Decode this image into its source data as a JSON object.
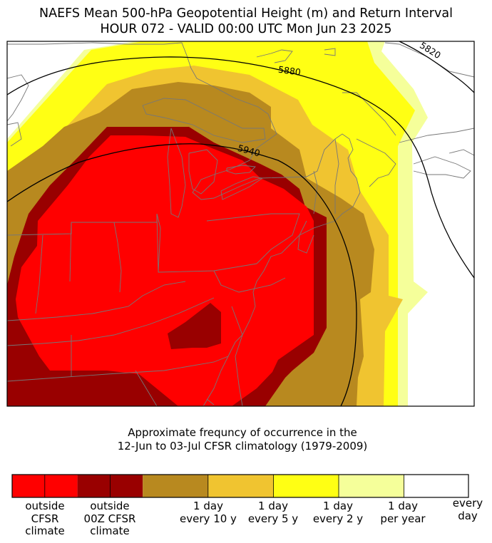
{
  "title": {
    "line1": "NAEFS Mean 500-hPa Geopotential Height (m) and Return Interval",
    "line2": "HOUR 072 - VALID 00:00 UTC Mon Jun 23 2025"
  },
  "subtitle": {
    "line1": "Approximate frequncy of occurrence in the",
    "line2": "12-Jun to 03-Jul CFSR climatology (1979-2009)"
  },
  "contours": [
    {
      "label": "5820"
    },
    {
      "label": "5880"
    },
    {
      "label": "5940"
    }
  ],
  "colors": {
    "outside_cfsr": "#ff0000",
    "outside_00z": "#990000",
    "ten_year": "#b8891f",
    "five_year": "#f0c430",
    "two_year": "#ffff14",
    "per_year": "#f5ff9a",
    "every_day": "#ffffff",
    "borders": "#777777"
  },
  "colorbar": {
    "labels": [
      {
        "text": "outside\nCFSR\nclimate"
      },
      {
        "text": "outside\n00Z CFSR\nclimate"
      },
      {
        "text": "1 day\nevery 10 y"
      },
      {
        "text": "1 day\nevery 5 y"
      },
      {
        "text": "1 day\nevery 2 y"
      },
      {
        "text": "1 day\nper year"
      },
      {
        "text": "every\nday"
      }
    ]
  }
}
